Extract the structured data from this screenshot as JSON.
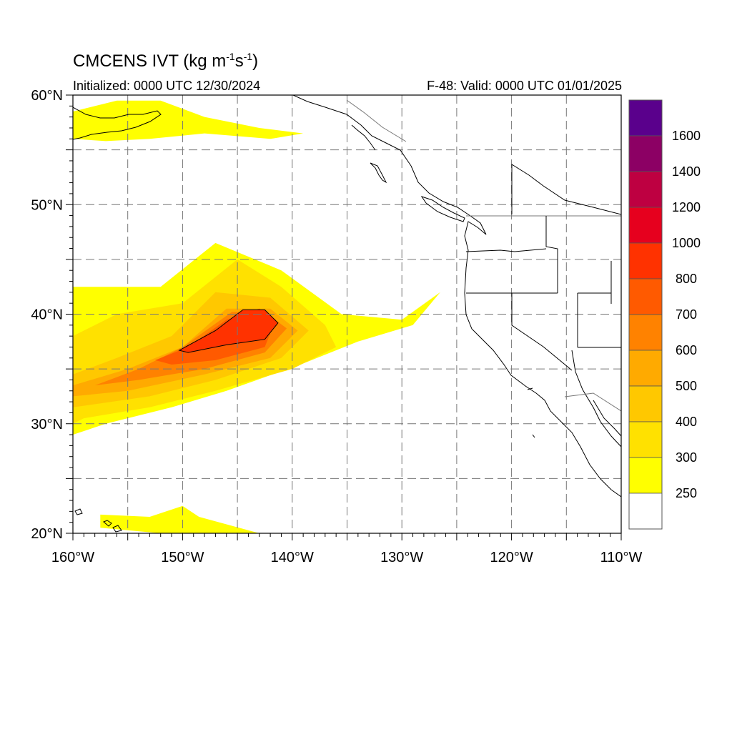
{
  "title": {
    "main": "CMCENS IVT (kg m",
    "sup1": "-1",
    "mid": "s",
    "sup2": "-1",
    "end": ")"
  },
  "subtitle_left": "Initialized: 0000 UTC 12/30/2024",
  "subtitle_right": "F-48: Valid: 0000 UTC 01/01/2025",
  "map": {
    "lon_range": [
      -160,
      -110
    ],
    "lat_range": [
      20,
      60
    ],
    "grid_lon_step": 5,
    "grid_lat_step": 5,
    "grid_style": "dashed",
    "lon_labels": [
      {
        "lon": -160,
        "text": "160°W"
      },
      {
        "lon": -150,
        "text": "150°W"
      },
      {
        "lon": -140,
        "text": "140°W"
      },
      {
        "lon": -130,
        "text": "130°W"
      },
      {
        "lon": -120,
        "text": "120°W"
      },
      {
        "lon": -110,
        "text": "110°W"
      }
    ],
    "lat_labels": [
      {
        "lat": 60,
        "text": "60°N"
      },
      {
        "lat": 50,
        "text": "50°N"
      },
      {
        "lat": 40,
        "text": "40°N"
      },
      {
        "lat": 30,
        "text": "30°N"
      },
      {
        "lat": 20,
        "text": "20°N"
      }
    ]
  },
  "chart_data": {
    "type": "heatmap",
    "variable": "IVT",
    "units": "kg m-1 s-1",
    "contour_levels": [
      250,
      300,
      400,
      500,
      600,
      700,
      800,
      1000,
      1200,
      1400,
      1600
    ],
    "colors": [
      "#ffffff",
      "#ffff00",
      "#ffe100",
      "#ffc800",
      "#ffaa00",
      "#ff8200",
      "#ff5a00",
      "#ff3200",
      "#e6001e",
      "#be0041",
      "#8c0064",
      "#5a008c"
    ],
    "highlight_contour": 800,
    "plume_regions": [
      {
        "level": 250,
        "polygon": [
          [
            -160,
            42.5
          ],
          [
            -152,
            42.5
          ],
          [
            -147,
            46.5
          ],
          [
            -141,
            44
          ],
          [
            -135.5,
            40
          ],
          [
            -130,
            39.5
          ],
          [
            -126.5,
            42
          ],
          [
            -129,
            39
          ],
          [
            -134,
            37.5
          ],
          [
            -139,
            35.5
          ],
          [
            -146,
            33
          ],
          [
            -151,
            31.5
          ],
          [
            -157,
            30
          ],
          [
            -160,
            29
          ]
        ]
      },
      {
        "level": 300,
        "polygon": [
          [
            -160,
            38
          ],
          [
            -156,
            40
          ],
          [
            -150,
            41
          ],
          [
            -145,
            45
          ],
          [
            -141,
            42.5
          ],
          [
            -137,
            39
          ],
          [
            -136,
            37
          ],
          [
            -140,
            35
          ],
          [
            -147,
            33
          ],
          [
            -153,
            31.5
          ],
          [
            -159,
            30.5
          ],
          [
            -160,
            30
          ]
        ]
      },
      {
        "level": 400,
        "polygon": [
          [
            -160,
            34.5
          ],
          [
            -156,
            36
          ],
          [
            -151,
            38
          ],
          [
            -147,
            42
          ],
          [
            -142,
            41.5
          ],
          [
            -138.5,
            38.5
          ],
          [
            -141,
            36
          ],
          [
            -147,
            34
          ],
          [
            -153,
            32.5
          ],
          [
            -160,
            31.5
          ]
        ]
      },
      {
        "level": 500,
        "polygon": [
          [
            -160,
            33.5
          ],
          [
            -155,
            35
          ],
          [
            -150,
            37
          ],
          [
            -146,
            40.5
          ],
          [
            -142,
            40.5
          ],
          [
            -139.5,
            38.5
          ],
          [
            -142,
            36
          ],
          [
            -148,
            34.5
          ],
          [
            -155,
            33
          ],
          [
            -160,
            32.5
          ]
        ]
      },
      {
        "level": 600,
        "polygon": [
          [
            -158,
            33.5
          ],
          [
            -154,
            35
          ],
          [
            -150,
            37
          ],
          [
            -145.5,
            40.2
          ],
          [
            -142.5,
            40.2
          ],
          [
            -140.5,
            38.7
          ],
          [
            -142.5,
            36.5
          ],
          [
            -148,
            35
          ],
          [
            -154,
            34
          ]
        ]
      },
      {
        "level": 700,
        "polygon": [
          [
            -152.5,
            35.8
          ],
          [
            -149.5,
            37
          ],
          [
            -146,
            39.5
          ],
          [
            -143,
            40.5
          ],
          [
            -141.5,
            39.5
          ],
          [
            -142.5,
            37
          ],
          [
            -147,
            35.8
          ],
          [
            -151,
            35.4
          ]
        ]
      },
      {
        "level": 800,
        "polygon": [
          [
            -150.3,
            36.7
          ],
          [
            -147,
            38.5
          ],
          [
            -144.5,
            40.4
          ],
          [
            -142.5,
            40.4
          ],
          [
            -141.3,
            39.2
          ],
          [
            -142.5,
            37.7
          ],
          [
            -146,
            37.2
          ],
          [
            -149.5,
            36.5
          ]
        ]
      },
      {
        "level": 250,
        "polygon": [
          [
            -160,
            58.5
          ],
          [
            -156,
            59.5
          ],
          [
            -152,
            59.5
          ],
          [
            -148,
            58
          ],
          [
            -143,
            57
          ],
          [
            -139,
            56.5
          ],
          [
            -142,
            56
          ],
          [
            -148,
            56.5
          ],
          [
            -153,
            56
          ],
          [
            -157,
            55.8
          ],
          [
            -160,
            56
          ]
        ]
      },
      {
        "level": 250,
        "polygon": [
          [
            -157.5,
            21.7
          ],
          [
            -153,
            21.5
          ],
          [
            -150,
            22.5
          ],
          [
            -148.5,
            21.5
          ],
          [
            -143,
            20
          ],
          [
            -152,
            20
          ],
          [
            -157.5,
            20.5
          ]
        ]
      }
    ],
    "colorbar": {
      "labels": [
        "1600",
        "1400",
        "1200",
        "1000",
        "800",
        "700",
        "600",
        "500",
        "400",
        "300",
        "250"
      ],
      "placement": "right"
    }
  }
}
